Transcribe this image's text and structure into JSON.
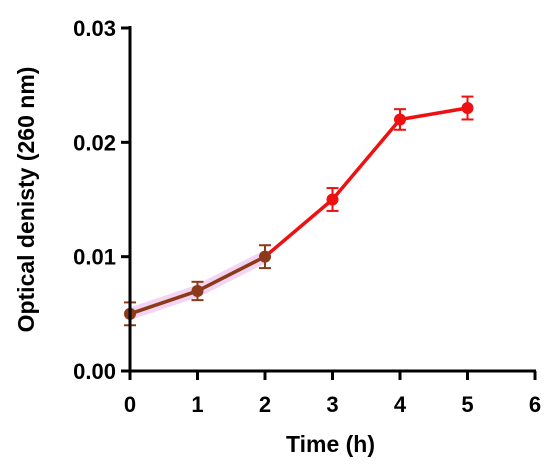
{
  "chart_data": {
    "type": "line",
    "xlabel": "Time (h)",
    "ylabel": "Optical denisty (260 nm)",
    "xlim": [
      0,
      6
    ],
    "ylim": [
      0,
      0.03
    ],
    "x_ticks": [
      0,
      1,
      2,
      3,
      4,
      5,
      6
    ],
    "y_ticks": [
      0,
      0.01,
      0.02,
      0.03
    ],
    "x_tick_labels": [
      "0",
      "1",
      "2",
      "3",
      "4",
      "5",
      "6"
    ],
    "y_tick_labels": [
      "0.00",
      "0.01",
      "0.02",
      "0.03"
    ],
    "grid": false,
    "series": [
      {
        "x": [
          0,
          1,
          2,
          3,
          4,
          5
        ],
        "y": [
          0.005,
          0.007,
          0.01,
          0.015,
          0.022,
          0.023
        ],
        "error": [
          0.001,
          0.0008,
          0.001,
          0.001,
          0.0009,
          0.001
        ],
        "color": "#ee1111",
        "early_segment_color": "#8b3a1a"
      }
    ]
  }
}
